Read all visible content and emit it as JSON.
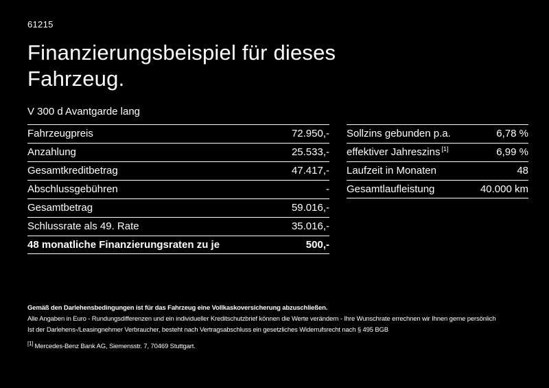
{
  "meta": {
    "id": "61215"
  },
  "title": "Finanzierungsbeispiel für dieses Fahrzeug.",
  "vehicle": "V 300 d Avantgarde lang",
  "left_table": {
    "rows": [
      {
        "label": "Fahrzeugpreis",
        "value": "72.950,-"
      },
      {
        "label": "Anzahlung",
        "value": "25.533,-"
      },
      {
        "label": "Gesamtkreditbetrag",
        "value": "47.417,-"
      },
      {
        "label": "Abschlussgebühren",
        "value": "-"
      },
      {
        "label": "Gesamtbetrag",
        "value": "59.016,-"
      },
      {
        "label": "Schlussrate als 49. Rate",
        "value": "35.016,-"
      },
      {
        "label": "48 monatliche Finanzierungsraten zu je",
        "value": "500,-"
      }
    ]
  },
  "right_table": {
    "rows": [
      {
        "label": "Sollzins gebunden p.a.",
        "value": "6,78 %"
      },
      {
        "label": "effektiver Jahreszins",
        "sup": "[1]",
        "value": "6,99 %"
      },
      {
        "label": "Laufzeit in Monaten",
        "value": "48"
      },
      {
        "label": "Gesamtlaufleistung",
        "value": "40.000 km"
      }
    ]
  },
  "footer": {
    "line1": "Gemäß den Darlehensbedingungen ist für das Fahrzeug eine Vollkaskoversicherung abzuschließen.",
    "line2": "Alle Angaben in Euro - Rundungsdifferenzen und ein individueller Kreditschutzbrief können die Werte verändern - Ihre Wunschrate errechnen wir Ihnen gerne persönlich",
    "line3": "Ist der Darlehens-/Leasingnehmer Verbraucher, besteht nach Vertragsabschluss ein gesetzliches Widerrufsrecht nach § 495 BGB",
    "footnote_marker": "[1]",
    "footnote_text": "Mercedes-Benz Bank AG, Siemensstr. 7, 70469 Stuttgart."
  },
  "colors": {
    "background": "#000000",
    "text": "#ffffff"
  }
}
